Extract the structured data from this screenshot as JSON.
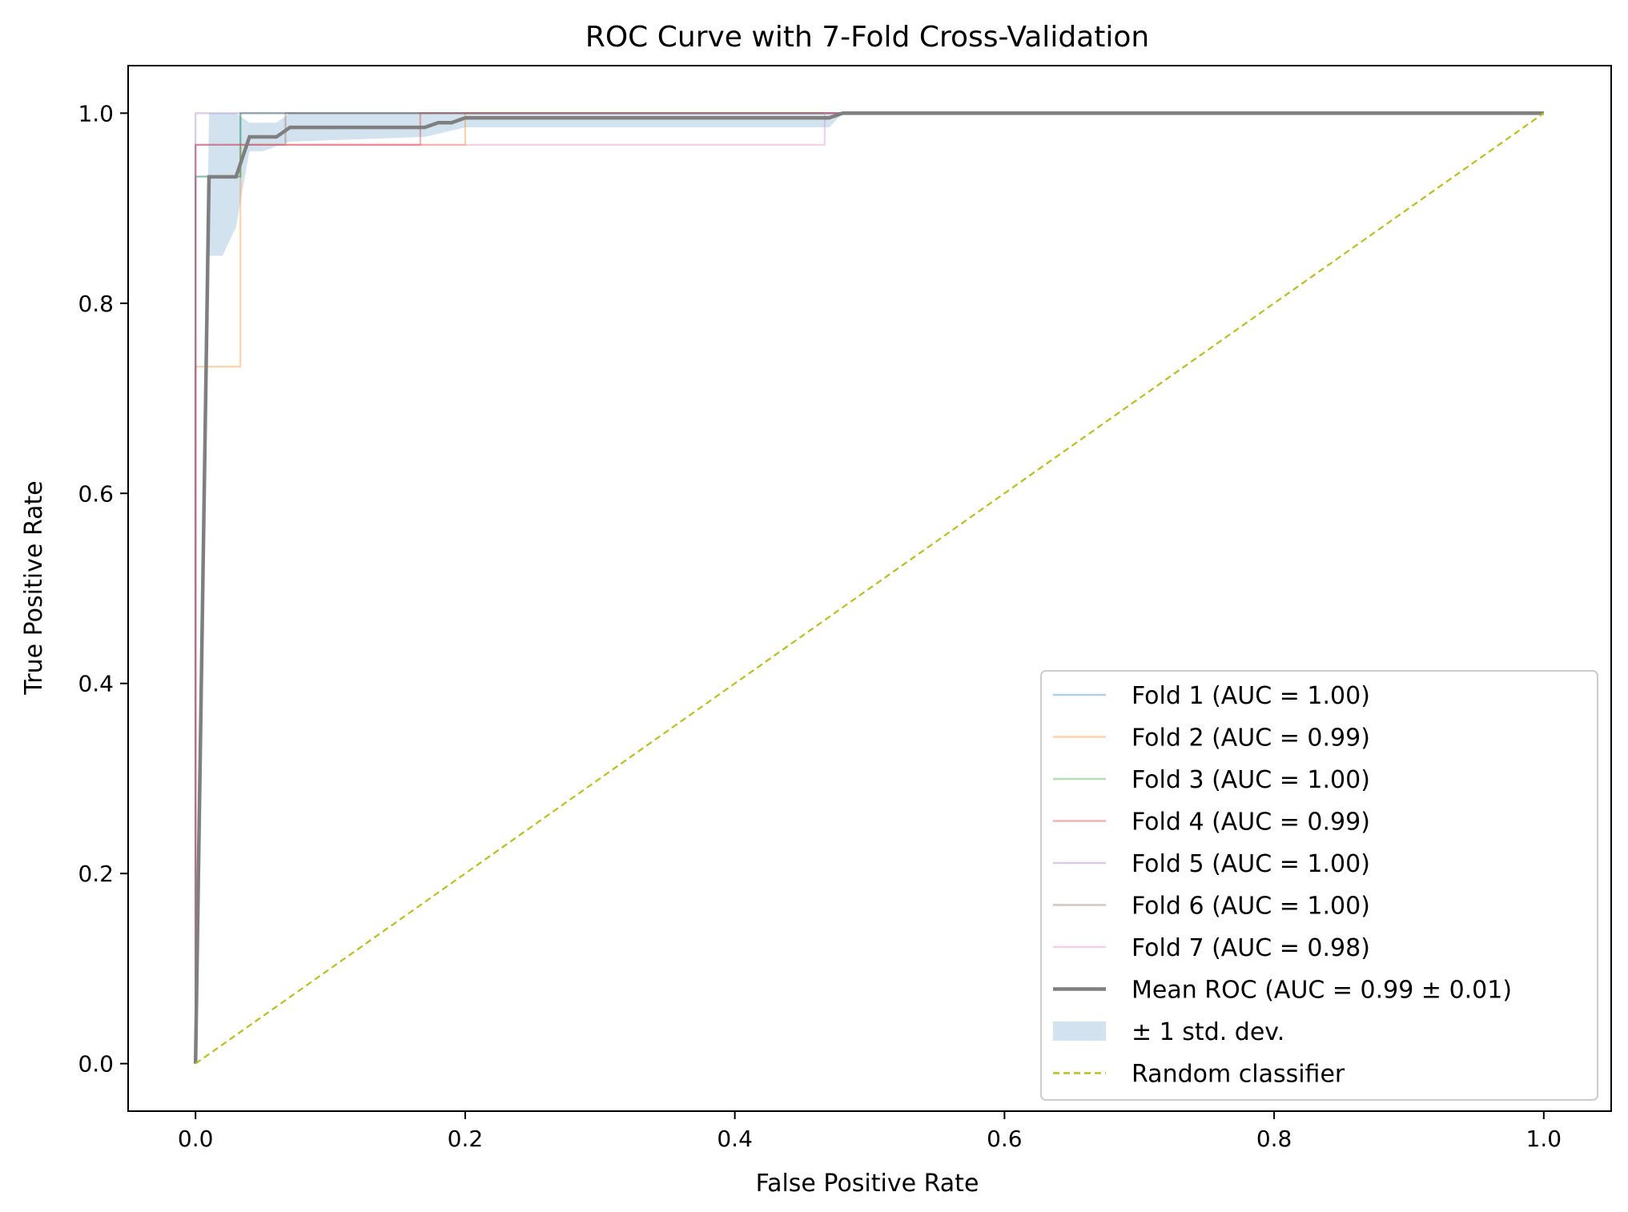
{
  "chart_data": {
    "type": "line",
    "title": "ROC Curve with 7-Fold Cross-Validation",
    "xlabel": "False Positive Rate",
    "ylabel": "True Positive Rate",
    "xlim": [
      -0.05,
      1.05
    ],
    "ylim": [
      -0.05,
      1.05
    ],
    "xticks": [
      "0.0",
      "0.2",
      "0.4",
      "0.6",
      "0.8",
      "1.0"
    ],
    "yticks": [
      "0.0",
      "0.2",
      "0.4",
      "0.6",
      "0.8",
      "1.0"
    ],
    "grid": false,
    "legend_position": "lower-right",
    "series": [
      {
        "name": "Fold 1 (AUC = 1.00)",
        "color": "#1f77b4",
        "style": "fold",
        "x": [
          0,
          0,
          0.0333,
          0.0333,
          1
        ],
        "y": [
          0,
          0.9333,
          0.9333,
          1.0,
          1.0
        ]
      },
      {
        "name": "Fold 2 (AUC = 0.99)",
        "color": "#ff7f0e",
        "style": "fold",
        "x": [
          0,
          0,
          0.0333,
          0.0333,
          0.2,
          0.2,
          1
        ],
        "y": [
          0,
          0.7333,
          0.7333,
          0.9667,
          0.9667,
          1.0,
          1.0
        ]
      },
      {
        "name": "Fold 3 (AUC = 1.00)",
        "color": "#2ca02c",
        "style": "fold",
        "x": [
          0,
          0,
          0.0333,
          0.0333,
          1
        ],
        "y": [
          0,
          0.9333,
          0.9333,
          1.0,
          1.0
        ]
      },
      {
        "name": "Fold 4 (AUC = 0.99)",
        "color": "#d62728",
        "style": "fold",
        "x": [
          0,
          0,
          0.1667,
          0.1667,
          1
        ],
        "y": [
          0,
          0.9667,
          0.9667,
          1.0,
          1.0
        ]
      },
      {
        "name": "Fold 5 (AUC = 1.00)",
        "color": "#9467bd",
        "style": "fold",
        "x": [
          0,
          0,
          1
        ],
        "y": [
          0,
          1.0,
          1.0
        ]
      },
      {
        "name": "Fold 6 (AUC = 1.00)",
        "color": "#8c564b",
        "style": "fold",
        "x": [
          0,
          0,
          0.0667,
          0.0667,
          1
        ],
        "y": [
          0,
          0.9667,
          0.9667,
          1.0,
          1.0
        ]
      },
      {
        "name": "Fold 7 (AUC = 0.98)",
        "color": "#e377c2",
        "style": "fold",
        "x": [
          0,
          0,
          0.4667,
          0.4667,
          1
        ],
        "y": [
          0,
          0.9667,
          0.9667,
          1.0,
          1.0
        ]
      },
      {
        "name": "Mean ROC (AUC = 0.99 ± 0.01)",
        "color": "#7f7f7f",
        "style": "mean",
        "x": [
          0,
          0.01,
          0.03,
          0.04,
          0.06,
          0.07,
          0.17,
          0.18,
          0.19,
          0.2,
          0.47,
          0.48,
          1.0
        ],
        "y": [
          0,
          0.933,
          0.933,
          0.975,
          0.975,
          0.985,
          0.985,
          0.99,
          0.99,
          0.995,
          0.995,
          1.0,
          1.0
        ]
      },
      {
        "name": "Random classifier",
        "color": "#bcbd22",
        "style": "dashed",
        "x": [
          0,
          1
        ],
        "y": [
          0,
          1
        ]
      }
    ],
    "std_band": {
      "name": "± 1 std. dev.",
      "color": "#a6c8e0",
      "x": [
        0.0,
        0.01,
        0.02,
        0.03,
        0.04,
        0.05,
        0.06,
        0.07,
        0.17,
        0.2,
        0.47,
        0.48,
        1.0
      ],
      "lower": [
        0.0,
        0.85,
        0.85,
        0.88,
        0.96,
        0.96,
        0.965,
        0.97,
        0.975,
        0.985,
        0.985,
        1.0,
        1.0
      ],
      "upper": [
        0.0,
        1.0,
        1.0,
        1.0,
        0.99,
        0.99,
        0.99,
        1.0,
        1.0,
        1.0,
        1.0,
        1.0,
        1.0
      ]
    }
  }
}
